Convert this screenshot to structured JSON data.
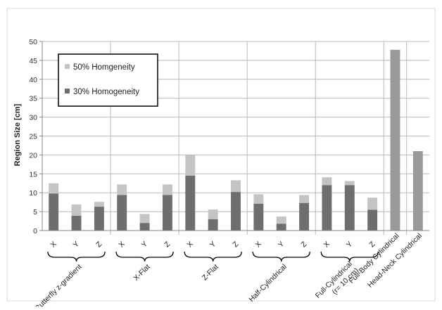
{
  "chart_data": {
    "type": "bar",
    "stacked": true,
    "ylabel": "Region Size [cm]",
    "ylim": [
      0,
      50
    ],
    "yticks": [
      0,
      5,
      10,
      15,
      20,
      25,
      30,
      35,
      40,
      45,
      50
    ],
    "legend": {
      "placement": "top-left",
      "entries": [
        {
          "label": "50% Homgeneity",
          "color": "#c4c4c4"
        },
        {
          "label": "30% Homogeneity",
          "color": "#6e6e6e"
        }
      ]
    },
    "colors": {
      "light": "#c4c4c4",
      "dark": "#6e6e6e",
      "single": "#9a9a9a",
      "grid": "#b8b8b8",
      "axis": "#888888"
    },
    "groups": [
      {
        "label": "Butterfly z-gradient",
        "categories": [
          "X",
          "Y",
          "Z"
        ],
        "dark": [
          9.8,
          3.9,
          6.3
        ],
        "light": [
          12.5,
          6.9,
          7.6
        ]
      },
      {
        "label": "X-Flat",
        "categories": [
          "X",
          "Y",
          "Z"
        ],
        "dark": [
          9.4,
          2.0,
          9.4
        ],
        "light": [
          12.2,
          4.4,
          12.2
        ]
      },
      {
        "label": "Z-Flat",
        "categories": [
          "X",
          "Y",
          "Z"
        ],
        "dark": [
          14.5,
          3.0,
          10.2
        ],
        "light": [
          20.0,
          5.6,
          13.3
        ]
      },
      {
        "label": "Half-Cylindrical",
        "categories": [
          "X",
          "Y",
          "Z"
        ],
        "dark": [
          7.1,
          1.8,
          7.3
        ],
        "light": [
          9.6,
          3.7,
          9.4
        ]
      },
      {
        "label": "Full-Cylindrical (r= 10 cm)",
        "label_lines": [
          "Full-Cylindrical",
          "(r= 10 cm)"
        ],
        "categories": [
          "X",
          "Y",
          "Z"
        ],
        "dark": [
          12.0,
          12.0,
          5.5
        ],
        "light": [
          14.1,
          13.1,
          8.7
        ]
      },
      {
        "label": "Full-Body Cylindrical",
        "categories": [
          ""
        ],
        "single": [
          47.8
        ]
      },
      {
        "label": "Head-Neck Cylindrical",
        "categories": [
          ""
        ],
        "single": [
          21.0
        ]
      }
    ]
  }
}
